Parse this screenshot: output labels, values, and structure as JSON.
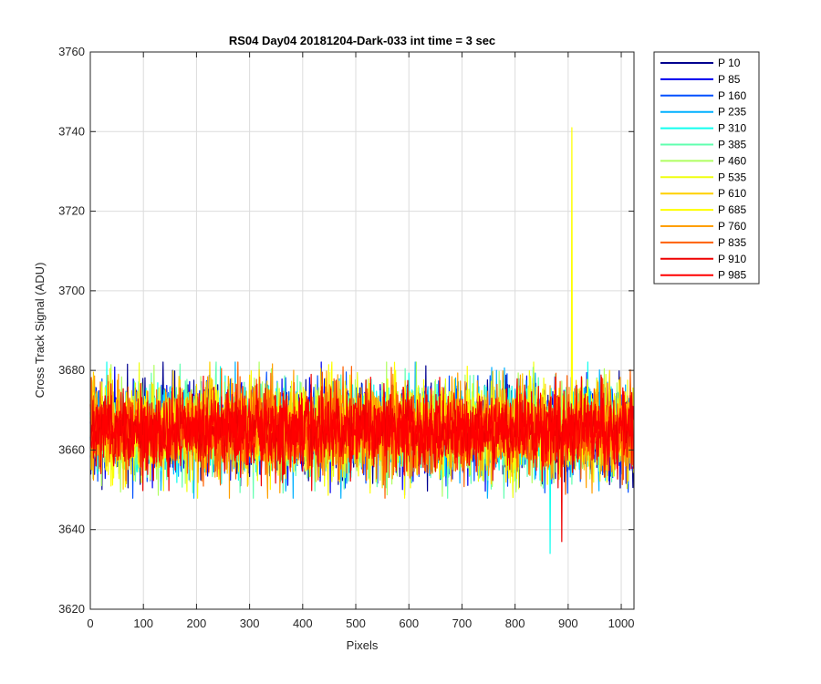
{
  "chart_data": {
    "type": "line",
    "title": "RS04 Day04 20181204-Dark-033 int time = 3 sec",
    "xlabel": "Pixels",
    "ylabel": "Cross Track Signal (ADU)",
    "xlim": [
      0,
      1024
    ],
    "ylim": [
      3620,
      3760
    ],
    "xticks": [
      0,
      100,
      200,
      300,
      400,
      500,
      600,
      700,
      800,
      900,
      1000
    ],
    "yticks": [
      3620,
      3640,
      3660,
      3680,
      3700,
      3720,
      3740,
      3760
    ],
    "grid": true,
    "legend_position": "outside-top-right",
    "x_count": 1024,
    "series": [
      {
        "name": "P 10",
        "color": "#00008F",
        "center": 3665,
        "spread": 9,
        "low": 3641,
        "high": 3688
      },
      {
        "name": "P 85",
        "color": "#0000EF",
        "center": 3665,
        "spread": 9,
        "low": 3640,
        "high": 3691
      },
      {
        "name": "P 160",
        "color": "#0050FF",
        "center": 3665,
        "spread": 9,
        "low": 3642,
        "high": 3689
      },
      {
        "name": "P 235",
        "color": "#00B0FF",
        "center": 3665,
        "spread": 9,
        "low": 3643,
        "high": 3692
      },
      {
        "name": "P 310",
        "color": "#10FFEF",
        "center": 3665,
        "spread": 9,
        "low": 3634,
        "high": 3690
      },
      {
        "name": "P 385",
        "color": "#60FFAF",
        "center": 3665,
        "spread": 9,
        "low": 3640,
        "high": 3689
      },
      {
        "name": "P 460",
        "color": "#AFFF60",
        "center": 3665,
        "spread": 9,
        "low": 3641,
        "high": 3691
      },
      {
        "name": "P 535",
        "color": "#EFFF10",
        "center": 3665,
        "spread": 9,
        "low": 3642,
        "high": 3694
      },
      {
        "name": "P 610",
        "color": "#FFD000",
        "center": 3665,
        "spread": 9,
        "low": 3642,
        "high": 3693
      },
      {
        "name": "P 685",
        "color": "#FFFF00",
        "center": 3665,
        "spread": 9,
        "low": 3640,
        "high": 3741
      },
      {
        "name": "P 760",
        "color": "#FF9F00",
        "center": 3665,
        "spread": 9,
        "low": 3641,
        "high": 3690
      },
      {
        "name": "P 835",
        "color": "#FF6000",
        "center": 3665,
        "spread": 9,
        "low": 3643,
        "high": 3689
      },
      {
        "name": "P 910",
        "color": "#EF0000",
        "center": 3665,
        "spread": 8,
        "low": 3637,
        "high": 3688
      },
      {
        "name": "P 985",
        "color": "#FF0000",
        "center": 3665,
        "spread": 7,
        "low": 3638,
        "high": 3686
      }
    ],
    "notable_points": [
      {
        "series": "P 685",
        "x": 907,
        "y": 3741
      },
      {
        "series": "P 310",
        "x": 866,
        "y": 3634
      },
      {
        "series": "P 910",
        "x": 888,
        "y": 3637
      }
    ]
  }
}
